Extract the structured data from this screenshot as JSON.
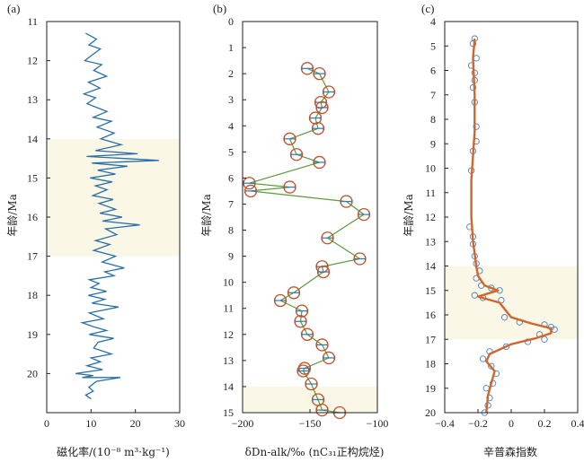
{
  "chart_data": [
    {
      "panel": "(a)",
      "type": "line",
      "xlabel": "磁化率/(10⁻⁸ m³·kg⁻¹)",
      "ylabel": "年龄/Ma",
      "xlim": [
        0,
        30
      ],
      "ylim": [
        11,
        21
      ],
      "y_inverted": true,
      "xticks": [
        0,
        10,
        20,
        30
      ],
      "yticks": [
        11,
        12,
        13,
        14,
        15,
        16,
        17,
        18,
        19,
        20
      ],
      "highlight_band": [
        14,
        17
      ],
      "series": [
        {
          "color": "#2a6ea8",
          "points": [
            [
              8.8,
              11.3
            ],
            [
              11.2,
              11.45
            ],
            [
              9.5,
              11.6
            ],
            [
              12.1,
              11.7
            ],
            [
              10.3,
              11.85
            ],
            [
              8.6,
              12.0
            ],
            [
              12.4,
              12.1
            ],
            [
              10.6,
              12.25
            ],
            [
              13.5,
              12.4
            ],
            [
              9.4,
              12.55
            ],
            [
              12.0,
              12.7
            ],
            [
              8.4,
              12.85
            ],
            [
              11.0,
              12.95
            ],
            [
              9.1,
              13.1
            ],
            [
              13.6,
              13.3
            ],
            [
              10.5,
              13.45
            ],
            [
              14.6,
              13.55
            ],
            [
              11.4,
              13.7
            ],
            [
              15.2,
              13.85
            ],
            [
              12.2,
              14.0
            ],
            [
              16.8,
              14.15
            ],
            [
              11.0,
              14.3
            ],
            [
              20.5,
              14.38
            ],
            [
              9.0,
              14.45
            ],
            [
              25.3,
              14.55
            ],
            [
              10.2,
              14.62
            ],
            [
              18.2,
              14.7
            ],
            [
              11.5,
              14.8
            ],
            [
              15.5,
              14.9
            ],
            [
              9.8,
              15.0
            ],
            [
              14.8,
              15.1
            ],
            [
              11.0,
              15.2
            ],
            [
              13.6,
              15.3
            ],
            [
              10.4,
              15.45
            ],
            [
              15.0,
              15.55
            ],
            [
              11.8,
              15.65
            ],
            [
              15.5,
              15.8
            ],
            [
              12.0,
              15.9
            ],
            [
              17.0,
              16.0
            ],
            [
              12.6,
              16.1
            ],
            [
              21.0,
              16.2
            ],
            [
              13.3,
              16.3
            ],
            [
              15.8,
              16.45
            ],
            [
              11.0,
              16.6
            ],
            [
              14.2,
              16.7
            ],
            [
              10.6,
              16.85
            ],
            [
              15.5,
              17.0
            ],
            [
              12.5,
              17.15
            ],
            [
              17.5,
              17.3
            ],
            [
              13.1,
              17.4
            ],
            [
              15.2,
              17.5
            ],
            [
              9.6,
              17.6
            ],
            [
              11.8,
              17.7
            ],
            [
              10.0,
              17.8
            ],
            [
              13.5,
              17.9
            ],
            [
              9.4,
              18.0
            ],
            [
              13.1,
              18.1
            ],
            [
              10.2,
              18.2
            ],
            [
              16.2,
              18.3
            ],
            [
              9.6,
              18.45
            ],
            [
              12.8,
              18.6
            ],
            [
              8.0,
              18.7
            ],
            [
              10.5,
              18.8
            ],
            [
              13.5,
              18.9
            ],
            [
              9.6,
              19.0
            ],
            [
              15.1,
              19.1
            ],
            [
              11.6,
              19.2
            ],
            [
              10.6,
              19.35
            ],
            [
              14.6,
              19.5
            ],
            [
              10.0,
              19.6
            ],
            [
              12.1,
              19.7
            ],
            [
              9.1,
              19.8
            ],
            [
              12.6,
              19.9
            ],
            [
              6.5,
              20.0
            ],
            [
              10.5,
              20.05
            ],
            [
              8.0,
              20.1
            ],
            [
              16.6,
              20.1
            ],
            [
              11.2,
              20.2
            ],
            [
              9.5,
              20.35
            ],
            [
              10.5,
              20.45
            ],
            [
              8.8,
              20.55
            ],
            [
              10.0,
              20.65
            ]
          ]
        }
      ]
    },
    {
      "panel": "(b)",
      "type": "scatter",
      "xlabel": "δDn-alk/‰ (nC₃₁正构烷烃)",
      "ylabel": "年龄/Ma",
      "xlim": [
        -200,
        -100
      ],
      "ylim": [
        0,
        15
      ],
      "y_inverted": true,
      "xticks": [
        -200,
        -150,
        -100
      ],
      "yticks": [
        0,
        1,
        2,
        3,
        4,
        5,
        6,
        7,
        8,
        9,
        10,
        11,
        12,
        13,
        14,
        15
      ],
      "highlight_band": [
        14,
        15
      ],
      "series": [
        {
          "marker_color": "#c0522d",
          "line_color": "#5b9a3a",
          "errorbar_color": "#2a7ab8",
          "points": [
            [
              -152,
              1.8
            ],
            [
              -143,
              2.0
            ],
            [
              -136,
              2.7
            ],
            [
              -142,
              3.1
            ],
            [
              -141,
              3.3
            ],
            [
              -146,
              3.7
            ],
            [
              -144,
              4.1
            ],
            [
              -165,
              4.5
            ],
            [
              -160,
              5.1
            ],
            [
              -143,
              5.4
            ],
            [
              -195,
              6.2
            ],
            [
              -165,
              6.35
            ],
            [
              -194,
              6.5
            ],
            [
              -123,
              6.9
            ],
            [
              -110,
              7.4
            ],
            [
              -137,
              8.3
            ],
            [
              -113,
              9.1
            ],
            [
              -141,
              9.4
            ],
            [
              -140,
              9.6
            ],
            [
              -162,
              10.4
            ],
            [
              -172,
              10.7
            ],
            [
              -156,
              11.1
            ],
            [
              -157,
              11.5
            ],
            [
              -152,
              12.0
            ],
            [
              -141,
              12.4
            ],
            [
              -136,
              12.9
            ],
            [
              -154,
              13.3
            ],
            [
              -155,
              13.4
            ],
            [
              -149,
              13.9
            ],
            [
              -144,
              14.5
            ],
            [
              -141,
              14.9
            ],
            [
              -128,
              15.0
            ]
          ]
        }
      ]
    },
    {
      "panel": "(c)",
      "type": "scatter",
      "xlabel": "辛普森指数",
      "ylabel": "年龄/Ma",
      "xlim": [
        -0.4,
        0.4
      ],
      "ylim": [
        4,
        20
      ],
      "y_inverted": true,
      "xticks": [
        -0.4,
        -0.2,
        0,
        0.2,
        0.4
      ],
      "yticks": [
        4,
        5,
        6,
        7,
        8,
        9,
        10,
        11,
        12,
        13,
        14,
        15,
        16,
        17,
        18,
        19,
        20
      ],
      "highlight_band": [
        14,
        17
      ],
      "series": [
        {
          "marker_color": "#4a80c0",
          "line_color": "#d2652a",
          "points": [
            [
              -0.22,
              4.7
            ],
            [
              -0.23,
              4.9
            ],
            [
              -0.21,
              5.5
            ],
            [
              -0.24,
              5.8
            ],
            [
              -0.22,
              6.1
            ],
            [
              -0.22,
              6.4
            ],
            [
              -0.23,
              6.7
            ],
            [
              -0.22,
              7.3
            ],
            [
              -0.21,
              8.3
            ],
            [
              -0.21,
              8.9
            ],
            [
              -0.23,
              9.3
            ],
            [
              -0.24,
              10.1
            ],
            [
              -0.25,
              12.4
            ],
            [
              -0.23,
              12.8
            ],
            [
              -0.23,
              13.1
            ],
            [
              -0.22,
              13.6
            ],
            [
              -0.21,
              13.9
            ],
            [
              -0.19,
              14.2
            ],
            [
              -0.21,
              14.5
            ],
            [
              -0.18,
              14.8
            ],
            [
              -0.12,
              14.9
            ],
            [
              -0.07,
              15.0
            ],
            [
              -0.22,
              15.2
            ],
            [
              -0.17,
              15.3
            ],
            [
              -0.06,
              15.4
            ],
            [
              -0.04,
              16.1
            ],
            [
              0.05,
              16.3
            ],
            [
              0.2,
              16.4
            ],
            [
              0.24,
              16.5
            ],
            [
              0.26,
              16.6
            ],
            [
              0.17,
              16.8
            ],
            [
              0.2,
              17.0
            ],
            [
              0.1,
              17.1
            ],
            [
              -0.03,
              17.3
            ],
            [
              -0.13,
              17.5
            ],
            [
              -0.17,
              17.8
            ],
            [
              -0.12,
              18.1
            ],
            [
              -0.09,
              18.4
            ],
            [
              -0.11,
              18.8
            ],
            [
              -0.15,
              19.0
            ],
            [
              -0.13,
              19.4
            ],
            [
              -0.14,
              19.7
            ],
            [
              -0.16,
              20.0
            ]
          ],
          "trend": [
            [
              -0.22,
              4.7
            ],
            [
              -0.23,
              5.5
            ],
            [
              -0.22,
              7.0
            ],
            [
              -0.22,
              8.5
            ],
            [
              -0.24,
              10.5
            ],
            [
              -0.24,
              12.0
            ],
            [
              -0.23,
              13.0
            ],
            [
              -0.21,
              14.0
            ],
            [
              -0.2,
              14.4
            ],
            [
              -0.16,
              14.8
            ],
            [
              -0.08,
              15.0
            ],
            [
              -0.2,
              15.25
            ],
            [
              -0.07,
              15.5
            ],
            [
              0.0,
              16.1
            ],
            [
              0.12,
              16.35
            ],
            [
              0.24,
              16.55
            ],
            [
              0.24,
              16.75
            ],
            [
              0.15,
              16.95
            ],
            [
              0.0,
              17.2
            ],
            [
              -0.13,
              17.6
            ],
            [
              -0.15,
              17.9
            ],
            [
              -0.1,
              18.3
            ],
            [
              -0.12,
              18.8
            ],
            [
              -0.14,
              19.3
            ],
            [
              -0.15,
              20.0
            ]
          ]
        }
      ]
    }
  ],
  "colors": {
    "band": "#fbf7e6",
    "line_a": "#2a6ea8",
    "circle_b": "#c0522d",
    "connector_b": "#5b9a3a",
    "errorbar_b": "#2a7ab8",
    "circle_c": "#4a80c0",
    "trend_c": "#d2652a"
  }
}
